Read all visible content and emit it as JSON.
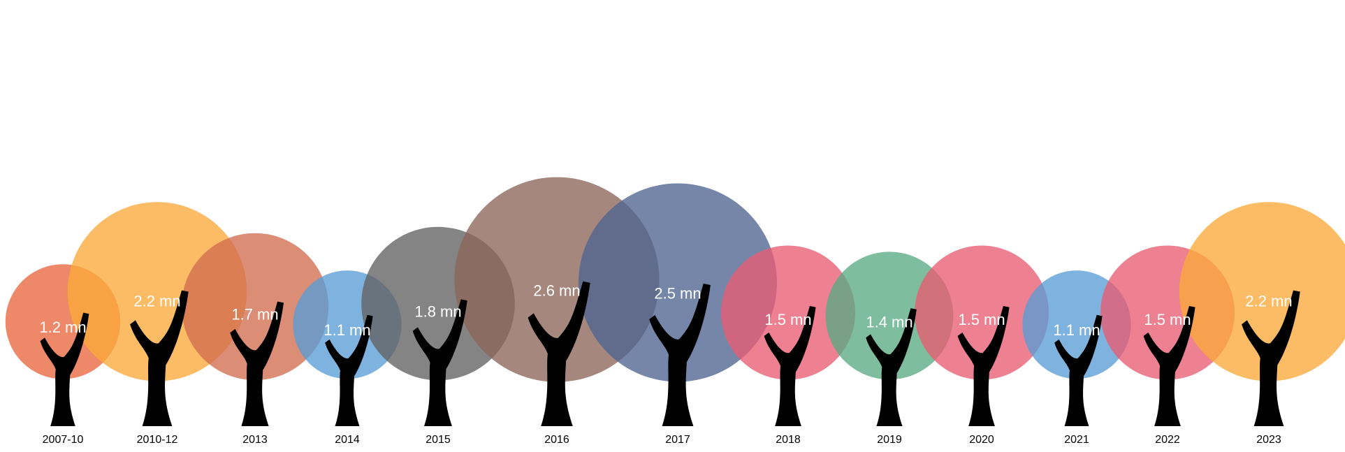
{
  "chart_data": {
    "type": "bubble",
    "value_unit": "mn",
    "points": [
      {
        "category": "2007-10",
        "value": 1.2,
        "label": "1.2 mn",
        "color": "#E8663D"
      },
      {
        "category": "2010-12",
        "value": 2.2,
        "label": "2.2 mn",
        "color": "#FBA93A"
      },
      {
        "category": "2013",
        "value": 1.7,
        "label": "1.7 mn",
        "color": "#D16D4F"
      },
      {
        "category": "2014",
        "value": 1.1,
        "label": "1.1 mn",
        "color": "#5A9CD6"
      },
      {
        "category": "2015",
        "value": 1.8,
        "label": "1.8 mn",
        "color": "#616161"
      },
      {
        "category": "2016",
        "value": 2.6,
        "label": "2.6 mn",
        "color": "#8C6559"
      },
      {
        "category": "2017",
        "value": 2.5,
        "label": "2.5 mn",
        "color": "#4E6491"
      },
      {
        "category": "2018",
        "value": 1.5,
        "label": "1.5 mn",
        "color": "#E85C72"
      },
      {
        "category": "2019",
        "value": 1.4,
        "label": "1.4 mn",
        "color": "#5AAA82"
      },
      {
        "category": "2020",
        "value": 1.5,
        "label": "1.5 mn",
        "color": "#E85C72"
      },
      {
        "category": "2021",
        "value": 1.1,
        "label": "1.1 mn",
        "color": "#5A9CD6"
      },
      {
        "category": "2022",
        "value": 1.5,
        "label": "1.5 mn",
        "color": "#E85C72"
      },
      {
        "category": "2023",
        "value": 2.2,
        "label": "2.2 mn",
        "color": "#FBA93A"
      }
    ]
  }
}
